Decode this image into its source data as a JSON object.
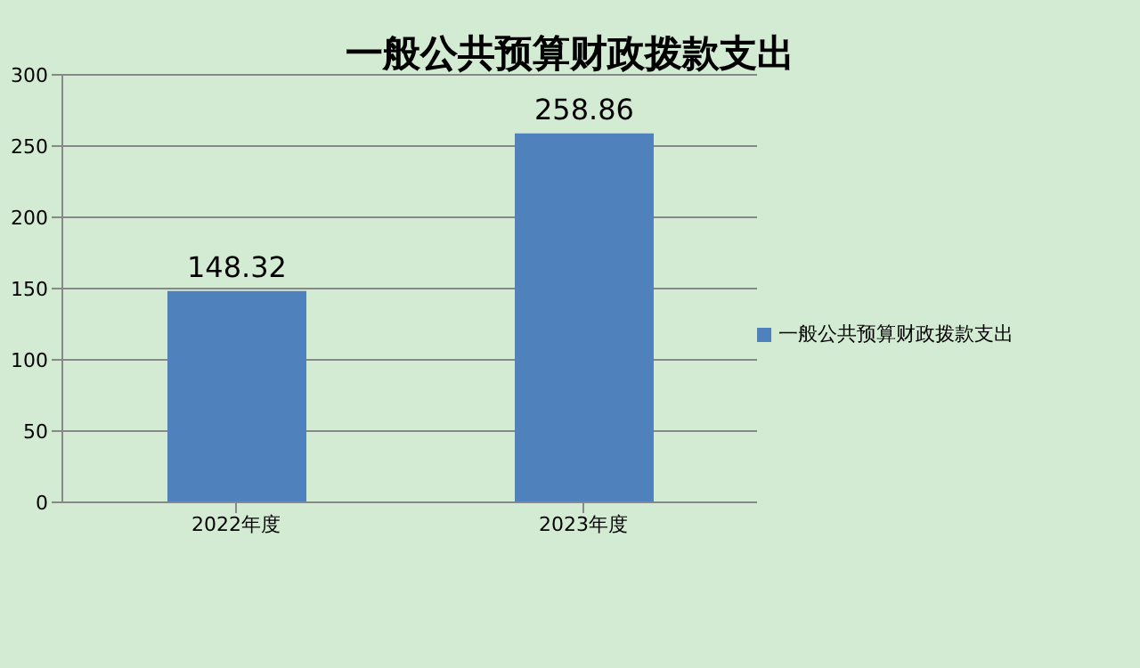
{
  "chart_data": {
    "type": "bar",
    "title": "一般公共预算财政拨款支出",
    "categories": [
      "2022年度",
      "2023年度"
    ],
    "series": [
      {
        "name": "一般公共预算财政拨款支出",
        "color": "#4f81bd",
        "values": [
          148.32,
          258.86
        ]
      }
    ],
    "ylim": [
      0,
      300
    ],
    "yticks": [
      0,
      50,
      100,
      150,
      200,
      250,
      300
    ],
    "grid": "y",
    "legend": "right",
    "data_labels": true
  }
}
